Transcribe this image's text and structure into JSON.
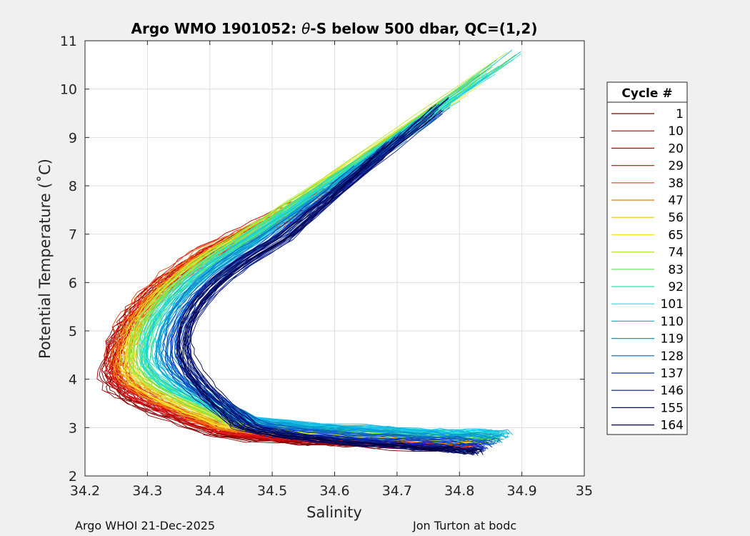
{
  "chart_data": {
    "type": "line",
    "title_prefix": "Argo WMO 1901052: ",
    "title_symbol": "θ",
    "title_suffix": "-S below 500 dbar,  QC=(1,2)",
    "xlabel": "Salinity",
    "ylabel": "Potential Temperature (˚C)",
    "xlim": [
      34.2,
      35.0
    ],
    "ylim": [
      2,
      11
    ],
    "xticks": [
      "34.2",
      "34.3",
      "34.4",
      "34.5",
      "34.6",
      "34.7",
      "34.8",
      "34.9",
      "35"
    ],
    "yticks": [
      "2",
      "3",
      "4",
      "5",
      "6",
      "7",
      "8",
      "9",
      "10",
      "11"
    ],
    "grid": true,
    "legend_position": "outside-right",
    "legend_title": "Cycle #",
    "legend_entries": [
      "1",
      "10",
      "20",
      "29",
      "38",
      "47",
      "56",
      "65",
      "74",
      "83",
      "92",
      "101",
      "110",
      "119",
      "128",
      "137",
      "146",
      "155",
      "164"
    ],
    "colors": {
      "1": "#7a0000",
      "10": "#9e0000",
      "20": "#c40000",
      "29": "#e31a1c",
      "38": "#f03c10",
      "47": "#f27a0c",
      "56": "#e8c21a",
      "65": "#f5e52a",
      "74": "#b8e636",
      "83": "#62e05a",
      "92": "#35e0a0",
      "101": "#1fe0d8",
      "110": "#16b9e8",
      "119": "#0a9ad0",
      "128": "#0a62c8",
      "137": "#0830b8",
      "146": "#061a8f",
      "155": "#040f66",
      "164": "#000045"
    },
    "series_shape": {
      "note": "approximate representative theta-S curve per cycle group (salinity, potential temperature)",
      "deep_tip": [
        {
          "cycles": "1-47",
          "s": 34.8,
          "t": 2.6
        },
        {
          "cycles": "56-101",
          "s": 34.88,
          "t": 2.9
        },
        {
          "cycles": "110-164",
          "s": 34.83,
          "t": 2.5
        }
      ],
      "min_salinity": [
        {
          "cycles": "1-47",
          "s": 34.23,
          "t": 4.2
        },
        {
          "cycles": "56-101",
          "s": 34.32,
          "t": 4.5
        },
        {
          "cycles": "110-164",
          "s": 34.36,
          "t": 4.7
        }
      ],
      "top_points": [
        {
          "cycles": "38-47",
          "s": 34.9,
          "t": 10.85
        },
        {
          "cycles": "146-164",
          "s": 34.8,
          "t": 9.85
        },
        {
          "cycles": "1-20",
          "s": 34.62,
          "t": 8.6
        }
      ]
    }
  },
  "footer": {
    "left": "Argo WHOI 21-Dec-2025",
    "right": "Jon Turton at bodc"
  }
}
